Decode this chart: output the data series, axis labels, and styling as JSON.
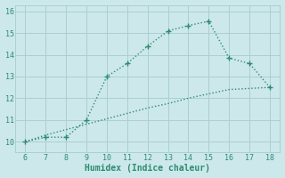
{
  "upper_x": [
    6,
    7,
    8,
    9,
    10,
    11,
    12,
    13,
    14,
    15,
    16,
    17,
    18
  ],
  "upper_y": [
    10.0,
    10.2,
    10.2,
    11.0,
    13.0,
    13.6,
    14.4,
    15.1,
    15.35,
    15.55,
    13.85,
    13.6,
    12.5
  ],
  "lower_x": [
    6,
    7,
    8,
    9,
    10,
    11,
    12,
    13,
    14,
    15,
    16,
    17,
    18
  ],
  "lower_y": [
    10.0,
    10.3,
    10.55,
    10.8,
    11.05,
    11.3,
    11.55,
    11.75,
    12.0,
    12.2,
    12.4,
    12.45,
    12.5
  ],
  "line_color": "#2e8b72",
  "bg_color": "#cce8ea",
  "grid_color": "#aacfd2",
  "xlabel": "Humidex (Indice chaleur)",
  "xlim": [
    5.5,
    18.5
  ],
  "ylim": [
    9.5,
    16.3
  ],
  "xticks": [
    6,
    7,
    8,
    9,
    10,
    11,
    12,
    13,
    14,
    15,
    16,
    17,
    18
  ],
  "yticks": [
    10,
    11,
    12,
    13,
    14,
    15,
    16
  ],
  "marker_size": 4,
  "linewidth": 1.0
}
